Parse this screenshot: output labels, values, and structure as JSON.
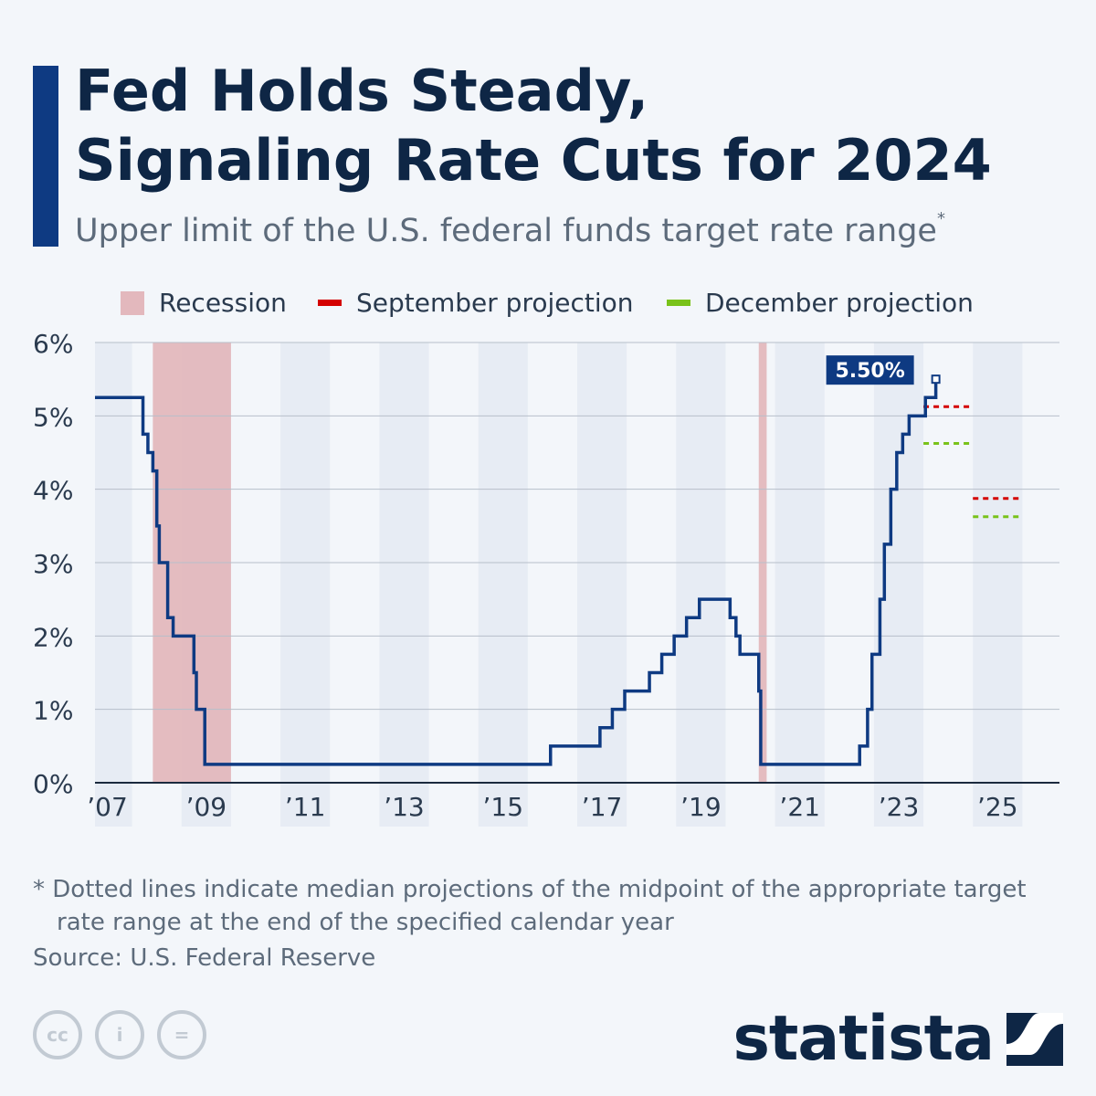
{
  "header": {
    "title_line1": "Fed Holds Steady,",
    "title_line2": "Signaling Rate Cuts for 2024",
    "subtitle": "Upper limit of the U.S. federal funds target rate range",
    "subtitle_mark": "*"
  },
  "legend": {
    "recession": "Recession",
    "september": "September projection",
    "december": "December projection"
  },
  "chart_data": {
    "type": "line",
    "title": "Fed Holds Steady, Signaling Rate Cuts for 2024",
    "subtitle": "Upper limit of the U.S. federal funds target rate range",
    "xlabel": "",
    "ylabel": "",
    "xlim": [
      2006.75,
      2026.25
    ],
    "ylim": [
      0,
      6
    ],
    "y_ticks": [
      0,
      1,
      2,
      3,
      4,
      5,
      6
    ],
    "y_tick_labels": [
      "0%",
      "1%",
      "2%",
      "3%",
      "4%",
      "5%",
      "6%"
    ],
    "x_ticks": [
      2007,
      2009,
      2011,
      2013,
      2015,
      2017,
      2019,
      2021,
      2023,
      2025
    ],
    "x_tick_labels": [
      "’07",
      "’09",
      "’11",
      "’13",
      "’15",
      "’17",
      "’19",
      "’21",
      "’23",
      "’25"
    ],
    "grid": true,
    "legend_position": "top",
    "series": [
      {
        "type": "step",
        "color": "#0e3a82",
        "x": [
          2006.75,
          2007.72,
          2007.82,
          2007.92,
          2008.0,
          2008.05,
          2008.08,
          2008.22,
          2008.33,
          2008.75,
          2008.8,
          2008.92,
          2008.97,
          2015.96,
          2016.96,
          2017.21,
          2017.46,
          2017.96,
          2018.21,
          2018.46,
          2018.71,
          2018.97,
          2019.59,
          2019.71,
          2019.79,
          2020.17,
          2020.21,
          2022.21,
          2022.37,
          2022.46,
          2022.62,
          2022.71,
          2022.84,
          2022.96,
          2023.08,
          2023.21,
          2023.54,
          2023.75
        ],
        "values": [
          5.25,
          4.75,
          4.5,
          4.25,
          3.5,
          3.0,
          3.0,
          2.25,
          2.0,
          1.5,
          1.0,
          1.0,
          0.25,
          0.5,
          0.75,
          1.0,
          1.25,
          1.5,
          1.75,
          2.0,
          2.25,
          2.5,
          2.25,
          2.0,
          1.75,
          1.25,
          0.25,
          0.5,
          1.0,
          1.75,
          2.5,
          3.25,
          4.0,
          4.5,
          4.75,
          5.0,
          5.25,
          5.5
        ]
      }
    ],
    "last_value_label": "5.50%",
    "recessions": [
      {
        "start": 2007.92,
        "end": 2009.5
      },
      {
        "start": 2020.17,
        "end": 2020.33
      }
    ],
    "projections": [
      {
        "name": "September projection",
        "color": "#d40000",
        "points": [
          {
            "year": 2024,
            "value": 5.125
          },
          {
            "year": 2025,
            "value": 3.875
          }
        ]
      },
      {
        "name": "December projection",
        "color": "#79c21a",
        "points": [
          {
            "year": 2024,
            "value": 4.625
          },
          {
            "year": 2025,
            "value": 3.625
          }
        ]
      }
    ]
  },
  "footer": {
    "footnote": "* Dotted lines indicate median projections of the midpoint of the appropriate target rate range at the end of the specified calendar year",
    "source": "Source: U.S. Federal Reserve",
    "logo_text": "statista",
    "cc_labels": [
      "cc",
      "i",
      "="
    ]
  },
  "colors": {
    "accent": "#0e3a82",
    "title": "#0e2645",
    "recession": "#e3b8bd",
    "september": "#d40000",
    "december": "#79c21a",
    "band": "#e7ecf4"
  },
  "icons": [
    "creative-commons-icon",
    "attribution-icon",
    "no-derivatives-icon",
    "statista-logo-icon"
  ]
}
